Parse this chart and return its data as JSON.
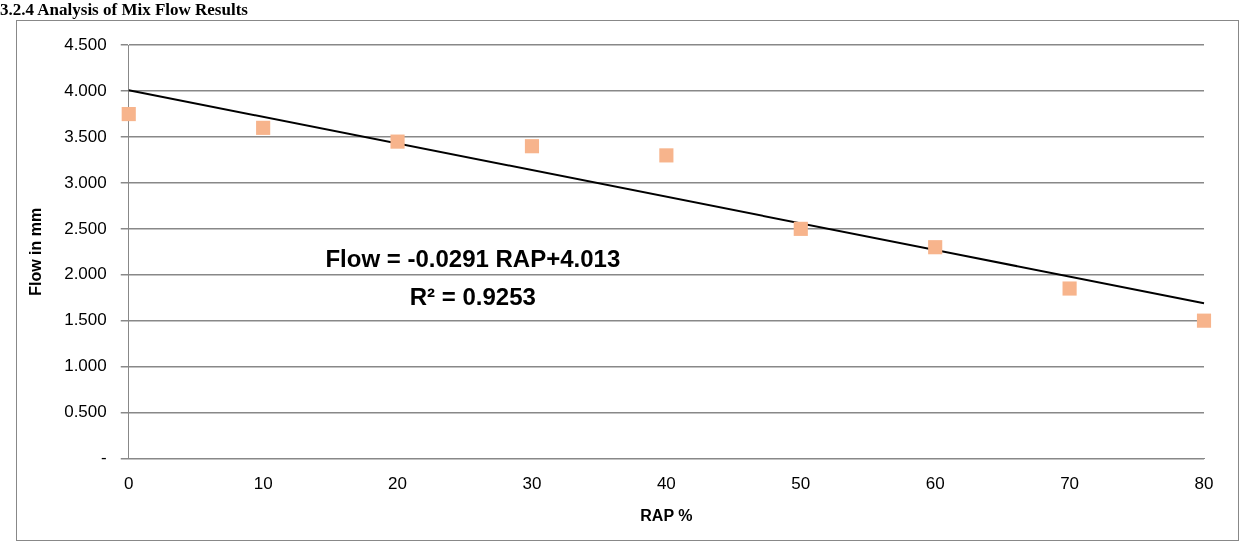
{
  "chart_data": {
    "type": "scatter",
    "title": "3.2.4 Analysis of Mix Flow Results",
    "xlabel": "RAP %",
    "ylabel": "Flow in mm",
    "x": [
      0,
      10,
      20,
      30,
      40,
      50,
      60,
      70,
      80
    ],
    "series": [
      {
        "type": "scatter",
        "color": "#f7b48c",
        "marker": "square",
        "values": [
          3.75,
          3.6,
          3.45,
          3.4,
          3.3,
          2.5,
          2.3,
          1.85,
          1.5
        ]
      },
      {
        "type": "line",
        "color": "#000000",
        "marker": "none",
        "x": [
          0,
          80
        ],
        "values": [
          4.01,
          1.69
        ]
      }
    ],
    "xlim": [
      0,
      80
    ],
    "xticks": [
      0,
      10,
      20,
      30,
      40,
      50,
      60,
      70,
      80
    ],
    "ylim": [
      0,
      4.5
    ],
    "yticks": [
      {
        "value": 0,
        "label": "-"
      },
      {
        "value": 0.5,
        "label": "0.500"
      },
      {
        "value": 1,
        "label": "1.000"
      },
      {
        "value": 1.5,
        "label": "1.500"
      },
      {
        "value": 2,
        "label": "2.000"
      },
      {
        "value": 2.5,
        "label": "2.500"
      },
      {
        "value": 3,
        "label": "3.000"
      },
      {
        "value": 3.5,
        "label": "3.500"
      },
      {
        "value": 4,
        "label": "4.000"
      },
      {
        "value": 4.5,
        "label": "4.500"
      }
    ],
    "grid": "y",
    "legend": false,
    "annotations": [
      "Flow = -0.0291 RAP+4.013",
      "R² = 0.9253"
    ]
  }
}
